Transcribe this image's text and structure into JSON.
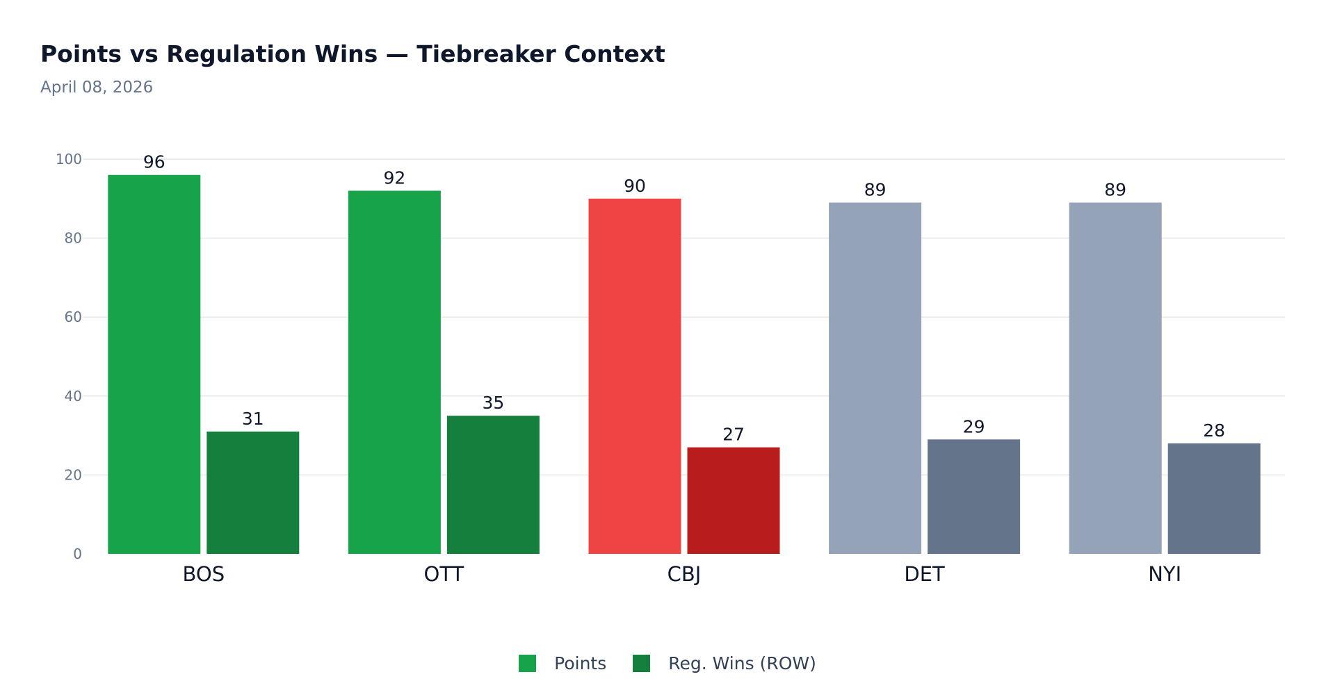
{
  "chart_data": {
    "type": "bar",
    "title": "Points vs Regulation Wins — Tiebreaker Context",
    "subtitle": "April 08, 2026",
    "xlabel": "",
    "ylabel": "",
    "ylim": [
      0,
      100
    ],
    "yticks": [
      0,
      20,
      40,
      60,
      80,
      100
    ],
    "ytick_labels": [
      "0",
      "20",
      "40",
      "60",
      "80",
      "100"
    ],
    "grid": true,
    "legend_position": "bottom-center",
    "categories": [
      "BOS",
      "OTT",
      "CBJ",
      "DET",
      "NYI"
    ],
    "series": [
      {
        "name": "Points",
        "values": [
          96,
          92,
          90,
          89,
          89
        ],
        "value_labels": [
          "96",
          "92",
          "90",
          "89",
          "89"
        ],
        "colors": [
          "#16a34a",
          "#16a34a",
          "#ef4444",
          "#94a3b8",
          "#94a3b8"
        ]
      },
      {
        "name": "Reg. Wins (ROW)",
        "values": [
          31,
          35,
          27,
          29,
          28
        ],
        "value_labels": [
          "31",
          "35",
          "27",
          "29",
          "28"
        ],
        "colors": [
          "#15803d",
          "#15803d",
          "#b91c1c",
          "#64748b",
          "#64748b"
        ]
      }
    ],
    "legend": [
      {
        "label": "Points",
        "color": "#16a34a"
      },
      {
        "label": "Reg. Wins (ROW)",
        "color": "#15803d"
      }
    ],
    "colors": {
      "grid": "#e5e7eb",
      "tick_text": "#64748b",
      "category_text": "#0f172a",
      "value_text": "#0f172a"
    }
  }
}
